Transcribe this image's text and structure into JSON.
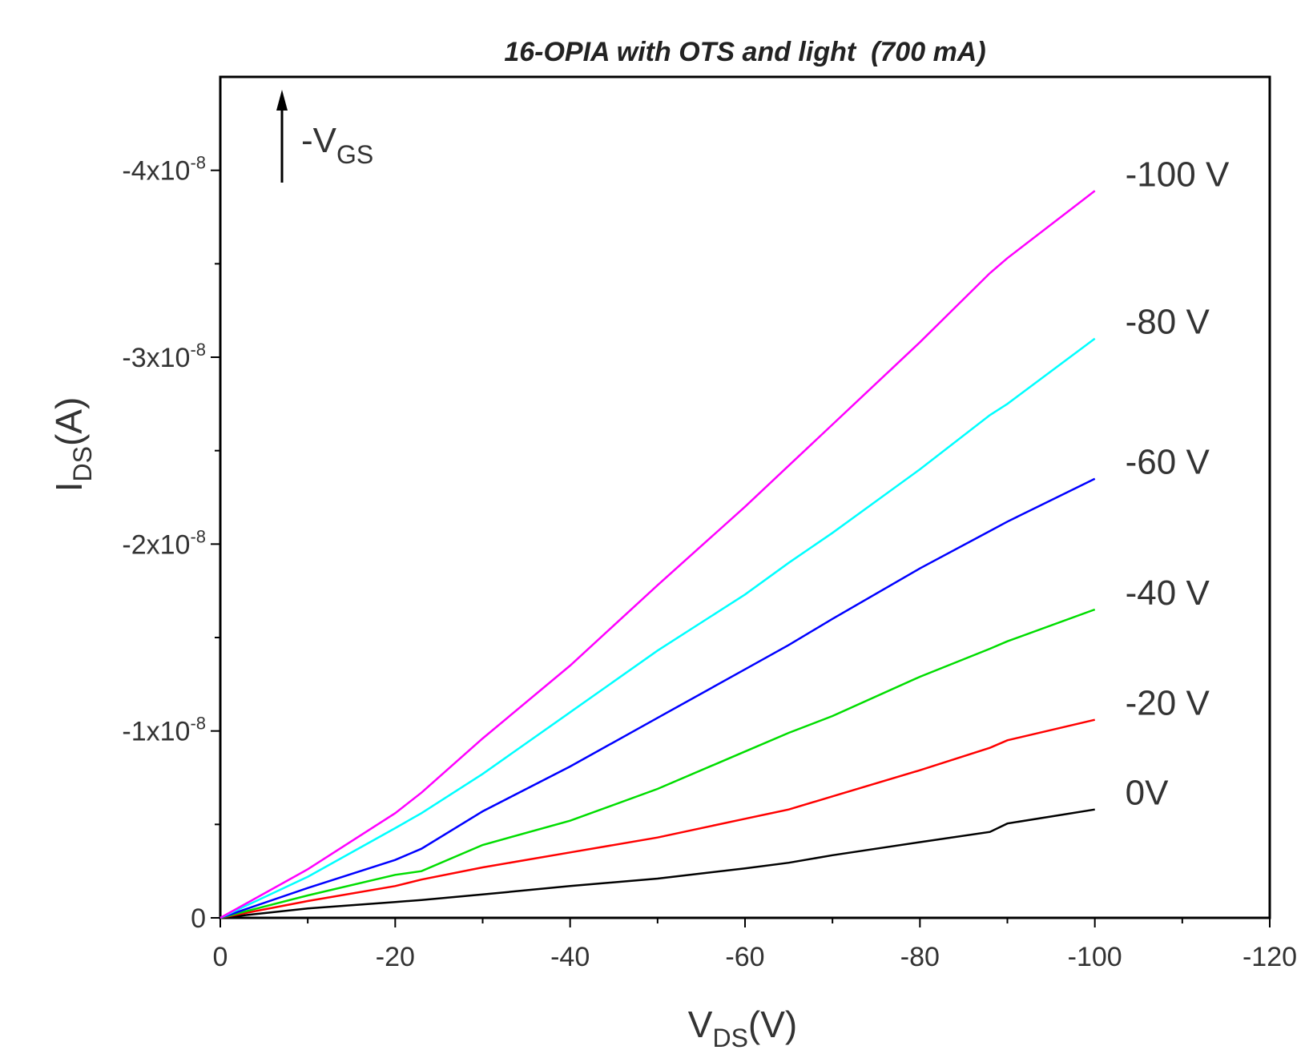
{
  "chart_data": {
    "type": "line",
    "title": "16-OPIA with OTS and light  (700 mA)",
    "xlabel_main": "V",
    "xlabel_sub": "DS",
    "xlabel_unit": "(V)",
    "ylabel_main": "I",
    "ylabel_sub": "DS",
    "ylabel_unit": "(A)",
    "annotation_main": "-V",
    "annotation_sub": "GS",
    "xlim": [
      0,
      -120
    ],
    "ylim": [
      0,
      -4.5e-08
    ],
    "x_ticks": [
      {
        "value": 0,
        "label": "0"
      },
      {
        "value": -20,
        "label": "-20"
      },
      {
        "value": -40,
        "label": "-40"
      },
      {
        "value": -60,
        "label": "-60"
      },
      {
        "value": -80,
        "label": "-80"
      },
      {
        "value": -100,
        "label": "-100"
      },
      {
        "value": -120,
        "label": "-120"
      }
    ],
    "y_ticks": [
      {
        "value": 0,
        "mantissa": "0",
        "exp": ""
      },
      {
        "value": -1e-08,
        "mantissa": "-1x10",
        "exp": "-8"
      },
      {
        "value": -2e-08,
        "mantissa": "-2x10",
        "exp": "-8"
      },
      {
        "value": -3e-08,
        "mantissa": "-3x10",
        "exp": "-8"
      },
      {
        "value": -4e-08,
        "mantissa": "-4x10",
        "exp": "-8"
      }
    ],
    "x": [
      0,
      -10,
      -20,
      -23,
      -30,
      -40,
      -50,
      -60,
      -65,
      -70,
      -80,
      -88,
      -90,
      -100
    ],
    "series": [
      {
        "name": "0V",
        "color": "#000000",
        "values": [
          0,
          -5e-10,
          -8.5e-10,
          -9.5e-10,
          -1.25e-09,
          -1.7e-09,
          -2.1e-09,
          -2.65e-09,
          -2.95e-09,
          -3.35e-09,
          -4.05e-09,
          -4.6e-09,
          -5.05e-09,
          -5.8e-09
        ]
      },
      {
        "name": "-20 V",
        "color": "#ff0000",
        "values": [
          0,
          -9e-10,
          -1.7e-09,
          -2.05e-09,
          -2.7e-09,
          -3.5e-09,
          -4.3e-09,
          -5.3e-09,
          -5.8e-09,
          -6.5e-09,
          -7.9e-09,
          -9.1e-09,
          -9.5e-09,
          -1.06e-08
        ]
      },
      {
        "name": "-40 V",
        "color": "#00dd00",
        "values": [
          0,
          -1.2e-09,
          -2.3e-09,
          -2.5e-09,
          -3.9e-09,
          -5.2e-09,
          -6.9e-09,
          -8.9e-09,
          -9.9e-09,
          -1.08e-08,
          -1.29e-08,
          -1.44e-08,
          -1.48e-08,
          -1.65e-08
        ]
      },
      {
        "name": "-60 V",
        "color": "#0000ff",
        "values": [
          0,
          -1.6e-09,
          -3.1e-09,
          -3.7e-09,
          -5.7e-09,
          -8.1e-09,
          -1.07e-08,
          -1.33e-08,
          -1.46e-08,
          -1.6e-08,
          -1.87e-08,
          -2.07e-08,
          -2.12e-08,
          -2.35e-08
        ]
      },
      {
        "name": "-80 V",
        "color": "#00ffff",
        "values": [
          0,
          -2.2e-09,
          -4.8e-09,
          -5.6e-09,
          -7.7e-09,
          -1.1e-08,
          -1.43e-08,
          -1.73e-08,
          -1.9e-08,
          -2.06e-08,
          -2.4e-08,
          -2.69e-08,
          -2.75e-08,
          -3.1e-08
        ]
      },
      {
        "name": "-100 V",
        "color": "#ff00ff",
        "values": [
          0,
          -2.6e-09,
          -5.6e-09,
          -6.7e-09,
          -9.6e-09,
          -1.35e-08,
          -1.78e-08,
          -2.2e-08,
          -2.42e-08,
          -2.64e-08,
          -3.08e-08,
          -3.45e-08,
          -3.53e-08,
          -3.89e-08
        ]
      }
    ]
  }
}
